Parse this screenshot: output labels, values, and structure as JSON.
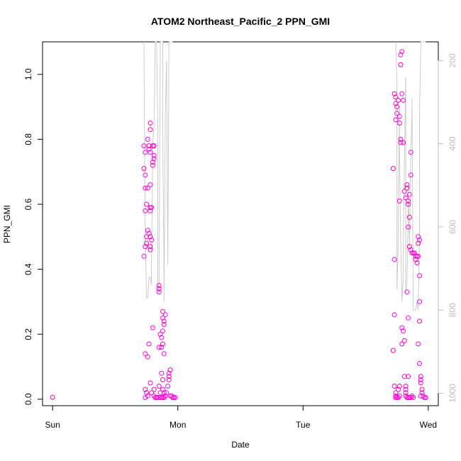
{
  "chart_data": {
    "type": "scatter",
    "title": "ATOM2 Northeast_Pacific_2 PPN_GMI",
    "xlabel": "Date",
    "ylabel": "PPN_GMI",
    "x_tick_labels": [
      "Sun",
      "Mon",
      "Tue",
      "Wed"
    ],
    "xlim_days": [
      -0.08,
      3.08
    ],
    "y_ticks": [
      "0.0",
      "0.2",
      "0.4",
      "0.6",
      "0.8",
      "1.0"
    ],
    "ylim": [
      -0.02,
      1.1
    ],
    "y2_ticks": [
      "200",
      "400",
      "600",
      "800",
      "1000"
    ],
    "y2lim": [
      1030,
      155
    ],
    "y2_reversed": true,
    "point_color": "#ff00ee",
    "point_color_alt": "#ff00aa",
    "line_color": "#cccccc",
    "series": [
      {
        "points": [
          [
            0.0,
            0.006
          ],
          [
            0.74,
            0.005
          ],
          [
            0.75,
            0.02
          ],
          [
            0.74,
            0.03
          ],
          [
            0.73,
            0.78
          ],
          [
            0.74,
            0.76
          ],
          [
            0.73,
            0.71
          ],
          [
            0.74,
            0.69
          ],
          [
            0.74,
            0.65
          ],
          [
            0.76,
            0.65
          ],
          [
            0.73,
            0.44
          ],
          [
            0.74,
            0.47
          ],
          [
            0.75,
            0.48
          ],
          [
            0.75,
            0.5
          ],
          [
            0.76,
            0.52
          ],
          [
            0.74,
            0.58
          ],
          [
            0.75,
            0.6
          ],
          [
            0.76,
            0.8
          ],
          [
            0.77,
            0.78
          ],
          [
            0.77,
            0.77
          ],
          [
            0.78,
            0.85
          ],
          [
            0.78,
            0.83
          ],
          [
            0.78,
            0.76
          ],
          [
            0.78,
            0.66
          ],
          [
            0.78,
            0.59
          ],
          [
            0.78,
            0.58
          ],
          [
            0.79,
            0.59
          ],
          [
            0.78,
            0.47
          ],
          [
            0.78,
            0.46
          ],
          [
            0.77,
            0.51
          ],
          [
            0.78,
            0.5
          ],
          [
            0.79,
            0.49
          ],
          [
            0.74,
            0.14
          ],
          [
            0.76,
            0.13
          ],
          [
            0.77,
            0.17
          ],
          [
            0.78,
            0.05
          ],
          [
            0.79,
            0.02
          ],
          [
            0.76,
            0.01
          ],
          [
            0.8,
            0.73
          ],
          [
            0.8,
            0.72
          ],
          [
            0.81,
            0.74
          ],
          [
            0.81,
            0.75
          ],
          [
            0.8,
            0.78
          ],
          [
            0.81,
            0.78
          ],
          [
            0.8,
            0.22
          ],
          [
            0.81,
            0.03
          ],
          [
            0.81,
            0.01
          ],
          [
            0.82,
            0.005
          ],
          [
            0.83,
            0.005
          ],
          [
            0.84,
            0.005
          ],
          [
            0.85,
            0.35
          ],
          [
            0.85,
            0.34
          ],
          [
            0.85,
            0.33
          ],
          [
            0.85,
            0.04
          ],
          [
            0.85,
            0.16
          ],
          [
            0.86,
            0.02
          ],
          [
            0.86,
            0.005
          ],
          [
            0.87,
            0.005
          ],
          [
            0.88,
            0.005
          ],
          [
            0.89,
            0.005
          ],
          [
            0.86,
            0.2
          ],
          [
            0.87,
            0.19
          ],
          [
            0.87,
            0.16
          ],
          [
            0.88,
            0.17
          ],
          [
            0.89,
            0.14
          ],
          [
            0.87,
            0.08
          ],
          [
            0.88,
            0.06
          ],
          [
            0.88,
            0.03
          ],
          [
            0.89,
            0.02
          ],
          [
            0.9,
            0.01
          ],
          [
            0.91,
            0.02
          ],
          [
            0.92,
            0.04
          ],
          [
            0.93,
            0.06
          ],
          [
            0.93,
            0.07
          ],
          [
            0.93,
            0.08
          ],
          [
            0.94,
            0.09
          ],
          [
            0.94,
            0.01
          ],
          [
            0.95,
            0.01
          ],
          [
            0.96,
            0.005
          ],
          [
            0.97,
            0.005
          ],
          [
            0.98,
            0.005
          ],
          [
            0.88,
            0.27
          ],
          [
            0.88,
            0.25
          ],
          [
            0.89,
            0.24
          ],
          [
            0.89,
            0.23
          ],
          [
            0.88,
            0.21
          ],
          [
            0.9,
            0.26
          ],
          [
            2.73,
            0.94
          ],
          [
            2.74,
            0.93
          ],
          [
            2.74,
            0.91
          ],
          [
            2.75,
            0.9
          ],
          [
            2.75,
            0.88
          ],
          [
            2.74,
            0.86
          ],
          [
            2.76,
            0.92
          ],
          [
            2.77,
            0.87
          ],
          [
            2.77,
            0.85
          ],
          [
            2.78,
            0.8
          ],
          [
            2.78,
            0.79
          ],
          [
            2.77,
            0.61
          ],
          [
            2.72,
            0.71
          ],
          [
            2.73,
            0.43
          ],
          [
            2.73,
            0.26
          ],
          [
            2.72,
            0.15
          ],
          [
            2.73,
            0.04
          ],
          [
            2.74,
            0.02
          ],
          [
            2.74,
            0.01
          ],
          [
            2.74,
            0.005
          ],
          [
            2.75,
            0.005
          ],
          [
            2.76,
            0.005
          ],
          [
            2.77,
            0.01
          ],
          [
            2.76,
            0.03
          ],
          [
            2.77,
            0.04
          ],
          [
            2.78,
            1.06
          ],
          [
            2.79,
            1.07
          ],
          [
            2.78,
            1.03
          ],
          [
            2.79,
            0.94
          ],
          [
            2.8,
            0.92
          ],
          [
            2.8,
            0.79
          ],
          [
            2.79,
            0.22
          ],
          [
            2.8,
            0.21
          ],
          [
            2.81,
            0.18
          ],
          [
            2.79,
            0.17
          ],
          [
            2.81,
            0.07
          ],
          [
            2.82,
            0.04
          ],
          [
            2.82,
            0.03
          ],
          [
            2.82,
            0.02
          ],
          [
            2.82,
            0.01
          ],
          [
            2.83,
            0.005
          ],
          [
            2.84,
            0.005
          ],
          [
            2.85,
            0.005
          ],
          [
            2.86,
            0.005
          ],
          [
            2.87,
            0.01
          ],
          [
            2.88,
            0.005
          ],
          [
            2.81,
            0.64
          ],
          [
            2.82,
            0.62
          ],
          [
            2.83,
            0.65
          ],
          [
            2.83,
            0.66
          ],
          [
            2.84,
            0.6
          ],
          [
            2.84,
            0.61
          ],
          [
            2.85,
            0.63
          ],
          [
            2.84,
            0.53
          ],
          [
            2.85,
            0.56
          ],
          [
            2.86,
            0.69
          ],
          [
            2.86,
            0.76
          ],
          [
            2.85,
            0.47
          ],
          [
            2.83,
            0.33
          ],
          [
            2.84,
            0.25
          ],
          [
            2.84,
            0.07
          ],
          [
            2.86,
            0.46
          ],
          [
            2.87,
            0.45
          ],
          [
            2.88,
            0.45
          ],
          [
            2.89,
            0.45
          ],
          [
            2.9,
            0.44
          ],
          [
            2.91,
            0.44
          ],
          [
            2.92,
            0.44
          ],
          [
            2.91,
            0.42
          ],
          [
            2.9,
            0.43
          ],
          [
            2.92,
            0.5
          ],
          [
            2.93,
            0.49
          ],
          [
            2.92,
            0.48
          ],
          [
            2.93,
            0.38
          ],
          [
            2.93,
            0.3
          ],
          [
            2.93,
            0.24
          ],
          [
            2.92,
            0.17
          ],
          [
            2.93,
            0.11
          ],
          [
            2.94,
            0.07
          ],
          [
            2.94,
            0.06
          ],
          [
            2.94,
            0.05
          ],
          [
            2.95,
            0.03
          ],
          [
            2.95,
            0.02
          ],
          [
            2.94,
            0.01
          ],
          [
            2.96,
            0.01
          ],
          [
            2.97,
            0.005
          ],
          [
            2.98,
            0.005
          ]
        ]
      }
    ],
    "depth_line": [
      [
        0.73,
        155
      ],
      [
        0.74,
        640
      ],
      [
        0.74,
        620
      ],
      [
        0.75,
        770
      ],
      [
        0.76,
        770
      ],
      [
        0.77,
        720
      ],
      [
        0.78,
        720
      ],
      [
        0.79,
        740
      ],
      [
        0.79,
        700
      ],
      [
        0.8,
        400
      ],
      [
        0.81,
        350
      ],
      [
        0.82,
        155
      ],
      [
        0.83,
        155
      ],
      [
        0.84,
        350
      ],
      [
        0.84,
        740
      ],
      [
        0.85,
        760
      ],
      [
        0.86,
        155
      ],
      [
        0.87,
        155
      ],
      [
        0.88,
        155
      ],
      [
        0.88,
        380
      ],
      [
        0.89,
        740
      ],
      [
        0.89,
        780
      ],
      [
        0.9,
        330
      ],
      [
        0.91,
        200
      ],
      [
        0.92,
        690
      ],
      [
        0.93,
        155
      ],
      [
        0.94,
        155
      ],
      [
        0.95,
        155
      ],
      [
        0.96,
        155
      ],
      [
        2.74,
        155
      ],
      [
        2.75,
        250
      ],
      [
        2.75,
        750
      ],
      [
        2.76,
        640
      ],
      [
        2.76,
        590
      ],
      [
        2.77,
        310
      ],
      [
        2.77,
        420
      ],
      [
        2.78,
        640
      ],
      [
        2.79,
        780
      ],
      [
        2.8,
        720
      ],
      [
        2.8,
        630
      ],
      [
        2.81,
        430
      ],
      [
        2.82,
        240
      ],
      [
        2.82,
        760
      ],
      [
        2.83,
        730
      ],
      [
        2.84,
        560
      ],
      [
        2.84,
        500
      ],
      [
        2.85,
        650
      ],
      [
        2.86,
        420
      ],
      [
        2.87,
        330
      ],
      [
        2.87,
        290
      ],
      [
        2.88,
        800
      ],
      [
        2.89,
        800
      ],
      [
        2.9,
        800
      ],
      [
        2.91,
        780
      ],
      [
        2.92,
        800
      ],
      [
        2.93,
        640
      ],
      [
        2.93,
        330
      ],
      [
        2.94,
        155
      ],
      [
        2.95,
        155
      ],
      [
        2.96,
        155
      ],
      [
        2.97,
        155
      ],
      [
        2.98,
        155
      ]
    ]
  }
}
